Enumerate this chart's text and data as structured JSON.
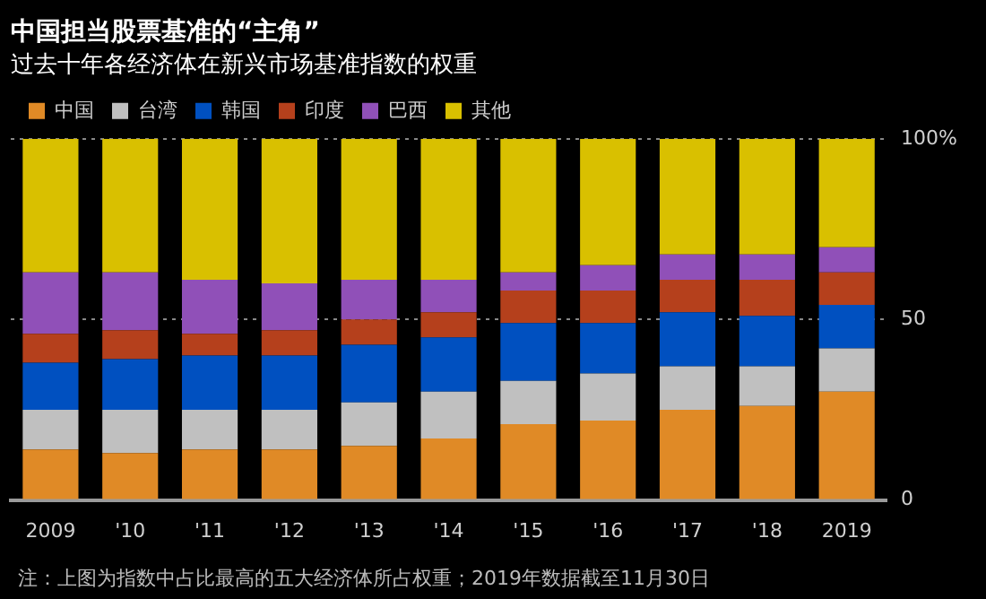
{
  "chart_data": {
    "type": "bar",
    "title": "中国担当股票基准的“主角”",
    "subtitle": "过去十年各经济体在新兴市场基准指数的权重",
    "categories": [
      "2009",
      "'10",
      "'11",
      "'12",
      "'13",
      "'14",
      "'15",
      "'16",
      "'17",
      "'18",
      "2019"
    ],
    "stacked": true,
    "series": [
      {
        "name": "中国",
        "color": "#e08a26",
        "values": [
          14,
          13,
          14,
          14,
          15,
          17,
          21,
          22,
          25,
          26,
          30
        ]
      },
      {
        "name": "台湾",
        "color": "#c0c0c0",
        "values": [
          11,
          12,
          11,
          11,
          12,
          13,
          12,
          13,
          12,
          11,
          12
        ]
      },
      {
        "name": "韩国",
        "color": "#0050c0",
        "values": [
          13,
          14,
          15,
          15,
          16,
          15,
          16,
          14,
          15,
          14,
          12
        ]
      },
      {
        "name": "印度",
        "color": "#b5401c",
        "values": [
          8,
          8,
          6,
          7,
          7,
          7,
          9,
          9,
          9,
          10,
          9
        ]
      },
      {
        "name": "巴西",
        "color": "#9050b8",
        "values": [
          17,
          16,
          15,
          13,
          11,
          9,
          5,
          7,
          7,
          7,
          7
        ]
      },
      {
        "name": "其他",
        "color": "#d9c000",
        "values": [
          37,
          37,
          39,
          40,
          39,
          39,
          37,
          35,
          32,
          32,
          30
        ]
      }
    ],
    "ylim": [
      0,
      100
    ],
    "yticks": [
      0,
      50,
      {
        "value": 100,
        "label": "100%"
      }
    ],
    "grid": "y",
    "legend": "top left",
    "annotations": [
      "注：上图为指数中占比最高的五大经济体所占权重；2019年数据截至11月30日"
    ]
  }
}
